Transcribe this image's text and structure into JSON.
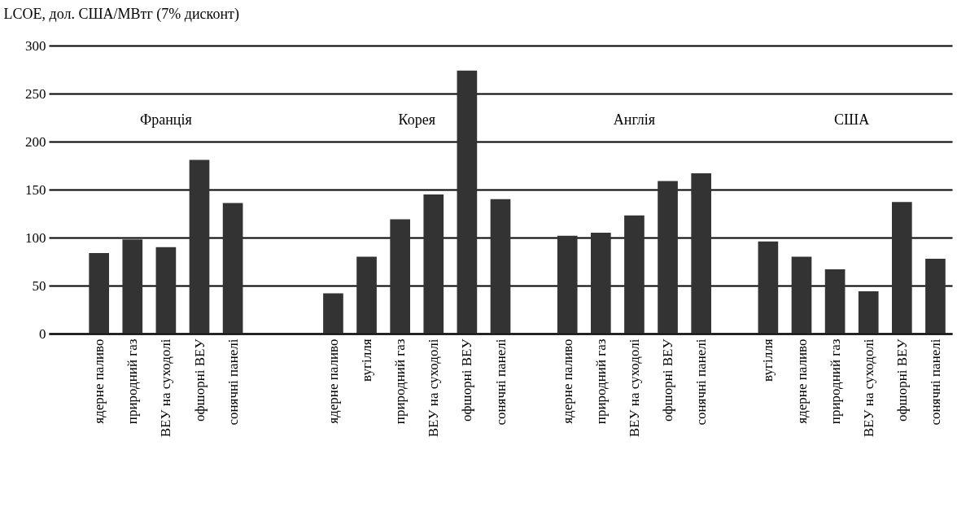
{
  "chart_data": {
    "type": "bar",
    "ylabel": "LCOE, дол. США/МВтг (7% дисконт)",
    "categories": [
      null,
      "ядерне паливо",
      "природний газ",
      "ВЕУ  на суходолі",
      "офшорні ВЕУ",
      "сонячні панелі",
      null,
      null,
      "ядерне паливо",
      "вугілля",
      "природний газ",
      "ВЕУ  на суходолі",
      "офшорні ВЕУ",
      "сонячні панелі",
      null,
      "ядерне паливо",
      "природний газ",
      "ВЕУ  на суходолі",
      "офшорні ВЕУ",
      "сонячні панелі",
      null,
      "вугілля",
      "ядерне паливо",
      "природний газ",
      "ВЕУ  на суходолі",
      "офшорні ВЕУ",
      "сонячні панелі"
    ],
    "values": [
      null,
      84,
      98,
      90,
      181,
      136,
      null,
      null,
      42,
      80,
      119,
      145,
      274,
      140,
      null,
      102,
      105,
      123,
      159,
      167,
      null,
      96,
      80,
      67,
      44,
      137,
      78
    ],
    "color": "#333333",
    "ylim": [
      0,
      300
    ],
    "yticks": [
      0,
      50,
      100,
      150,
      200,
      250,
      300
    ],
    "grid": "y",
    "annotations": [
      "Франція",
      "Корея",
      "Англія",
      "США"
    ]
  }
}
